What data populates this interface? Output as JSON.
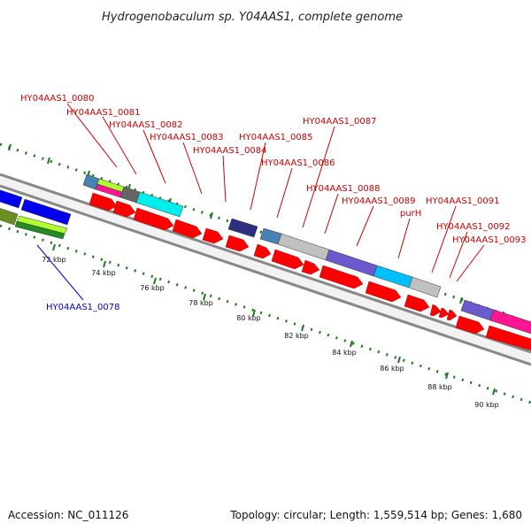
{
  "title": "Hydrogenobaculum sp. Y04AAS1, complete genome",
  "footer": {
    "accession": "Accession: NC_011126",
    "summary": "Topology: circular; Length: 1,559,514 bp; Genes: 1,680"
  },
  "colors": {
    "label_red": "#cc0000",
    "label_blue": "#0000cc",
    "tick_green": "#1a7a1a",
    "backbone": "#888888",
    "gene_red": "#ff0000"
  },
  "scale_labels": [
    "72 kbp",
    "74 kbp",
    "76 kbp",
    "78 kbp",
    "80 kbp",
    "82 kbp",
    "84 kbp",
    "86 kbp",
    "88 kbp",
    "90 kbp"
  ],
  "gene_labels": [
    {
      "text": "HY04AAS1_0080",
      "color": "red"
    },
    {
      "text": "HY04AAS1_0081",
      "color": "red"
    },
    {
      "text": "HY04AAS1_0082",
      "color": "red"
    },
    {
      "text": "HY04AAS1_0083",
      "color": "red"
    },
    {
      "text": "HY04AAS1_0084",
      "color": "red"
    },
    {
      "text": "HY04AAS1_0085",
      "color": "red"
    },
    {
      "text": "HY04AAS1_0086",
      "color": "red"
    },
    {
      "text": "HY04AAS1_0087",
      "color": "red"
    },
    {
      "text": "HY04AAS1_0088",
      "color": "red"
    },
    {
      "text": "HY04AAS1_0089",
      "color": "red"
    },
    {
      "text": "purH",
      "color": "red"
    },
    {
      "text": "HY04AAS1_0091",
      "color": "red"
    },
    {
      "text": "HY04AAS1_0092",
      "color": "red"
    },
    {
      "text": "HY04AAS1_0093",
      "color": "red"
    },
    {
      "text": "HY04AAS1_0078",
      "color": "blue"
    }
  ]
}
